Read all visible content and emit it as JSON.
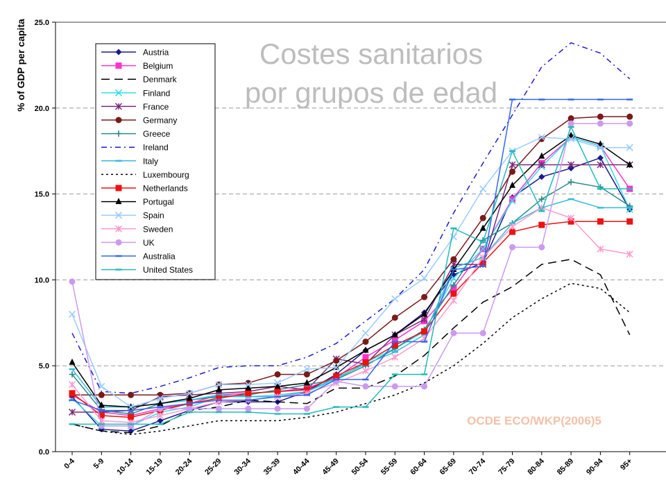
{
  "chart_data": {
    "type": "line",
    "title": "Costes sanitarios\npor grupos de edad",
    "source": "OCDE ECO/WKP(2006)5",
    "ylabel": "% of GDP per capita",
    "xlabel": "",
    "ylim": [
      0,
      25
    ],
    "yticks": [
      "0.0",
      "5.0",
      "10.0",
      "15.0",
      "20.0",
      "25.0"
    ],
    "grid": "horizontal dashed",
    "legend_position": "top-left",
    "categories": [
      "0-4",
      "5-9",
      "10-14",
      "15-19",
      "20-24",
      "25-29",
      "30-34",
      "35-39",
      "40-44",
      "45-49",
      "50-54",
      "55-59",
      "60-64",
      "65-69",
      "70-74",
      "75-79",
      "80-84",
      "85-89",
      "90-94",
      "95+"
    ],
    "series": [
      {
        "name": "Austria",
        "color": "#1a1a8c",
        "dash": "",
        "marker": "diamond",
        "values": [
          3.2,
          1.3,
          1.2,
          1.8,
          2.4,
          2.9,
          2.9,
          2.9,
          3.5,
          4.5,
          5.9,
          6.8,
          8.1,
          10.3,
          11.0,
          14.8,
          16.0,
          16.5,
          17.1,
          14.1
        ]
      },
      {
        "name": "Belgium",
        "color": "#ff33cc",
        "dash": "",
        "marker": "square",
        "values": [
          3.3,
          2.3,
          2.1,
          2.5,
          2.8,
          3.3,
          3.4,
          3.5,
          3.7,
          4.3,
          5.5,
          6.5,
          7.6,
          9.5,
          11.8,
          14.7,
          16.8,
          18.3,
          17.8,
          15.3
        ]
      },
      {
        "name": "Denmark",
        "color": "#000000",
        "dash": "12,7",
        "marker": "none",
        "values": [
          1.6,
          1.2,
          1.1,
          1.5,
          2.4,
          2.6,
          3.0,
          2.9,
          2.8,
          3.7,
          3.7,
          4.4,
          5.6,
          7.2,
          8.7,
          9.6,
          10.9,
          11.2,
          10.3,
          6.8
        ]
      },
      {
        "name": "Finland",
        "color": "#33ddee",
        "dash": "",
        "marker": "x",
        "values": [
          3.1,
          1.5,
          1.5,
          2.3,
          2.6,
          3.2,
          3.2,
          3.3,
          3.5,
          4.2,
          5.2,
          6.0,
          7.0,
          10.1,
          11.8,
          14.6,
          16.6,
          18.3,
          17.8,
          14.1
        ]
      },
      {
        "name": "France",
        "color": "#7a2a7a",
        "dash": "",
        "marker": "asterisk",
        "values": [
          2.3,
          2.3,
          2.4,
          3.2,
          3.3,
          3.4,
          3.5,
          3.8,
          3.6,
          5.4,
          5.1,
          6.8,
          7.7,
          10.9,
          10.9,
          16.7,
          16.7,
          16.7,
          16.7,
          16.7
        ]
      },
      {
        "name": "Germany",
        "color": "#7a1a1a",
        "dash": "",
        "marker": "circle",
        "values": [
          3.3,
          3.3,
          3.3,
          3.3,
          3.4,
          3.9,
          4.0,
          4.5,
          4.5,
          5.3,
          6.4,
          7.8,
          9.0,
          11.2,
          13.6,
          16.3,
          18.2,
          19.4,
          19.5,
          19.5
        ]
      },
      {
        "name": "Greece",
        "color": "#2a8a8a",
        "dash": "",
        "marker": "plus",
        "values": [
          4.5,
          2.4,
          2.2,
          2.8,
          3.0,
          3.2,
          3.3,
          3.6,
          3.9,
          4.2,
          5.0,
          6.0,
          7.1,
          9.7,
          12.3,
          13.3,
          14.7,
          15.7,
          15.4,
          14.3
        ]
      },
      {
        "name": "Ireland",
        "color": "#1a1acc",
        "dash": "8,5,2,5",
        "marker": "none",
        "values": [
          6.9,
          3.5,
          3.4,
          3.8,
          4.3,
          4.9,
          5.0,
          5.0,
          5.5,
          6.3,
          7.6,
          8.9,
          10.6,
          13.9,
          16.8,
          19.6,
          22.4,
          23.8,
          23.2,
          21.7
        ]
      },
      {
        "name": "Italy",
        "color": "#33bbdd",
        "dash": "",
        "marker": "dash",
        "values": [
          4.8,
          2.6,
          2.6,
          2.8,
          3.0,
          3.3,
          3.2,
          3.2,
          3.5,
          4.3,
          5.1,
          5.8,
          6.8,
          10.7,
          11.3,
          13.3,
          14.2,
          14.7,
          14.2,
          14.2
        ]
      },
      {
        "name": "Luxembourg",
        "color": "#000000",
        "dash": "3,4",
        "marker": "none",
        "values": [
          1.6,
          1.2,
          1.0,
          1.2,
          1.5,
          1.8,
          1.8,
          1.8,
          2.0,
          2.3,
          2.8,
          3.3,
          4.0,
          5.0,
          6.3,
          7.8,
          8.9,
          9.8,
          9.5,
          8.1
        ]
      },
      {
        "name": "Netherlands",
        "color": "#ee1111",
        "dash": "",
        "marker": "square",
        "values": [
          3.4,
          2.1,
          2.0,
          2.4,
          2.8,
          3.1,
          3.4,
          3.5,
          3.6,
          4.4,
          5.2,
          6.2,
          7.0,
          9.2,
          11.0,
          12.8,
          13.2,
          13.4,
          13.4,
          13.4
        ]
      },
      {
        "name": "Portugal",
        "color": "#000000",
        "dash": "",
        "marker": "triangle",
        "values": [
          5.2,
          2.7,
          2.6,
          2.8,
          3.1,
          3.6,
          3.7,
          3.8,
          4.0,
          4.9,
          5.9,
          6.8,
          8.0,
          10.6,
          13.0,
          15.5,
          17.2,
          18.4,
          17.9,
          16.7
        ]
      },
      {
        "name": "Spain",
        "color": "#99ccff",
        "dash": "",
        "marker": "x",
        "values": [
          8.0,
          3.8,
          2.6,
          3.1,
          3.4,
          3.9,
          3.9,
          4.0,
          4.8,
          4.9,
          6.9,
          8.9,
          10.1,
          12.5,
          15.3,
          17.5,
          18.3,
          18.2,
          17.7,
          17.7
        ]
      },
      {
        "name": "Sweden",
        "color": "#ff99cc",
        "dash": "",
        "marker": "asterisk",
        "values": [
          3.9,
          1.8,
          1.7,
          2.1,
          2.5,
          2.9,
          3.0,
          3.2,
          3.4,
          4.0,
          4.7,
          5.5,
          6.6,
          8.8,
          11.3,
          13.1,
          14.2,
          13.6,
          11.8,
          11.5
        ]
      },
      {
        "name": "UK",
        "color": "#cc99ee",
        "dash": "",
        "marker": "circle",
        "values": [
          9.9,
          1.5,
          1.5,
          2.5,
          2.5,
          2.5,
          2.5,
          2.5,
          2.5,
          4.1,
          3.8,
          3.8,
          3.8,
          6.9,
          6.9,
          11.9,
          11.9,
          19.1,
          19.1,
          19.1
        ]
      },
      {
        "name": "Australia",
        "color": "#3366ee",
        "dash": "",
        "marker": "dash",
        "values": [
          3.0,
          2.4,
          2.4,
          2.6,
          2.8,
          3.0,
          3.0,
          3.2,
          3.3,
          4.2,
          4.2,
          6.4,
          6.4,
          10.6,
          10.8,
          20.5,
          20.5,
          20.5,
          20.5,
          20.5
        ]
      },
      {
        "name": "United States",
        "color": "#22bbbb",
        "dash": "",
        "marker": "dash",
        "values": [
          1.6,
          1.6,
          1.6,
          1.6,
          2.3,
          2.3,
          2.3,
          2.2,
          2.2,
          2.6,
          2.6,
          4.5,
          4.5,
          13.0,
          12.2,
          17.5,
          14.0,
          18.9,
          15.3,
          15.3
        ]
      }
    ]
  }
}
